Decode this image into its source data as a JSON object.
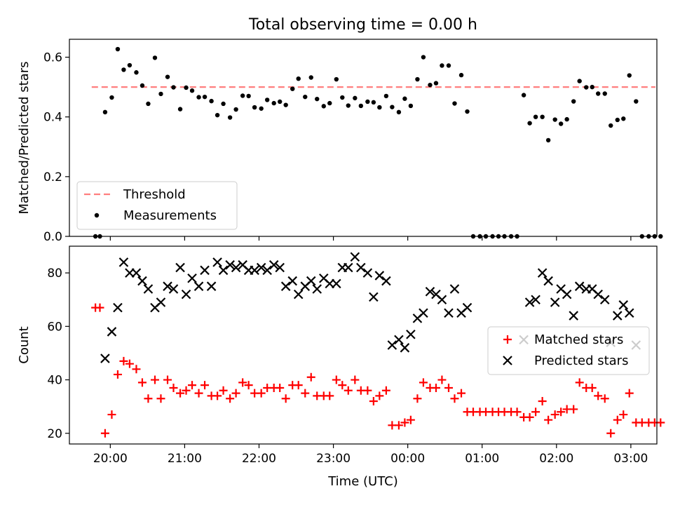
{
  "figure": {
    "title": "Total observing time = 0.00 h",
    "xlabel": "Time (UTC)"
  },
  "chart_data": [
    {
      "type": "scatter",
      "ylabel": "Matched/Predicted stars",
      "ylim": [
        0,
        0.66
      ],
      "yticks": [
        0.0,
        0.2,
        0.4,
        0.6
      ],
      "ytick_labels": [
        "0.0",
        "0.2",
        "0.4",
        "0.6"
      ],
      "xlim": [
        -0.55,
        7.35
      ],
      "xticks": [
        0,
        1,
        2,
        3,
        4,
        5,
        6,
        7
      ],
      "threshold": {
        "name": "Threshold",
        "value": 0.5,
        "x_range": [
          -0.25,
          7.33
        ],
        "color": "#ff7f7f"
      },
      "series": [
        {
          "name": "Measurements",
          "color": "#000000",
          "marker": "dot",
          "points": [
            [
              -0.2,
              0.0
            ],
            [
              -0.14,
              0.0
            ],
            [
              -0.07,
              0.416
            ],
            [
              0.02,
              0.465
            ],
            [
              0.1,
              0.627
            ],
            [
              0.18,
              0.558
            ],
            [
              0.26,
              0.573
            ],
            [
              0.35,
              0.549
            ],
            [
              0.43,
              0.505
            ],
            [
              0.51,
              0.444
            ],
            [
              0.6,
              0.598
            ],
            [
              0.68,
              0.477
            ],
            [
              0.77,
              0.534
            ],
            [
              0.85,
              0.499
            ],
            [
              0.94,
              0.426
            ],
            [
              1.02,
              0.498
            ],
            [
              1.1,
              0.488
            ],
            [
              1.19,
              0.466
            ],
            [
              1.27,
              0.467
            ],
            [
              1.36,
              0.453
            ],
            [
              1.44,
              0.406
            ],
            [
              1.52,
              0.444
            ],
            [
              1.61,
              0.398
            ],
            [
              1.69,
              0.425
            ],
            [
              1.78,
              0.471
            ],
            [
              1.86,
              0.47
            ],
            [
              1.94,
              0.432
            ],
            [
              2.03,
              0.428
            ],
            [
              2.11,
              0.457
            ],
            [
              2.2,
              0.446
            ],
            [
              2.28,
              0.451
            ],
            [
              2.36,
              0.44
            ],
            [
              2.45,
              0.494
            ],
            [
              2.53,
              0.528
            ],
            [
              2.62,
              0.467
            ],
            [
              2.7,
              0.532
            ],
            [
              2.78,
              0.46
            ],
            [
              2.87,
              0.436
            ],
            [
              2.95,
              0.446
            ],
            [
              3.04,
              0.526
            ],
            [
              3.12,
              0.465
            ],
            [
              3.2,
              0.438
            ],
            [
              3.29,
              0.463
            ],
            [
              3.37,
              0.437
            ],
            [
              3.46,
              0.451
            ],
            [
              3.54,
              0.449
            ],
            [
              3.62,
              0.432
            ],
            [
              3.71,
              0.47
            ],
            [
              3.79,
              0.433
            ],
            [
              3.88,
              0.416
            ],
            [
              3.96,
              0.461
            ],
            [
              4.04,
              0.437
            ],
            [
              4.13,
              0.526
            ],
            [
              4.21,
              0.6
            ],
            [
              4.3,
              0.507
            ],
            [
              4.38,
              0.513
            ],
            [
              4.46,
              0.572
            ],
            [
              4.55,
              0.572
            ],
            [
              4.63,
              0.445
            ],
            [
              4.72,
              0.54
            ],
            [
              4.8,
              0.418
            ],
            [
              4.88,
              0.0
            ],
            [
              4.97,
              0.0
            ],
            [
              5.05,
              0.0
            ],
            [
              5.14,
              0.0
            ],
            [
              5.22,
              0.0
            ],
            [
              5.3,
              0.0
            ],
            [
              5.39,
              0.0
            ],
            [
              5.47,
              0.0
            ],
            [
              5.56,
              0.473
            ],
            [
              5.64,
              0.379
            ],
            [
              5.72,
              0.4
            ],
            [
              5.81,
              0.4
            ],
            [
              5.89,
              0.322
            ],
            [
              5.98,
              0.391
            ],
            [
              6.06,
              0.377
            ],
            [
              6.14,
              0.392
            ],
            [
              6.23,
              0.452
            ],
            [
              6.31,
              0.52
            ],
            [
              6.4,
              0.499
            ],
            [
              6.48,
              0.5
            ],
            [
              6.56,
              0.478
            ],
            [
              6.65,
              0.478
            ],
            [
              6.73,
              0.371
            ],
            [
              6.82,
              0.39
            ],
            [
              6.9,
              0.394
            ],
            [
              6.98,
              0.539
            ],
            [
              7.07,
              0.452
            ],
            [
              7.15,
              0.0
            ],
            [
              7.24,
              0.0
            ],
            [
              7.32,
              0.0
            ],
            [
              7.4,
              0.0
            ]
          ]
        }
      ],
      "legend": {
        "placement": "lower-left",
        "entries": [
          "Threshold",
          "Measurements"
        ]
      }
    },
    {
      "type": "scatter",
      "ylabel": "Count",
      "ylim": [
        16,
        90
      ],
      "yticks": [
        20,
        40,
        60,
        80
      ],
      "ytick_labels": [
        "20",
        "40",
        "60",
        "80"
      ],
      "xlim": [
        -0.55,
        7.35
      ],
      "xticks": [
        0,
        1,
        2,
        3,
        4,
        5,
        6,
        7
      ],
      "xtick_labels": [
        "20:00",
        "21:00",
        "22:00",
        "23:00",
        "00:00",
        "01:00",
        "02:00",
        "03:00"
      ],
      "series": [
        {
          "name": "Matched stars",
          "color": "#ff0000",
          "marker": "plus",
          "points": [
            [
              -0.2,
              67
            ],
            [
              -0.14,
              67
            ],
            [
              -0.07,
              20
            ],
            [
              0.02,
              27
            ],
            [
              0.1,
              42
            ],
            [
              0.18,
              47
            ],
            [
              0.26,
              46
            ],
            [
              0.35,
              44
            ],
            [
              0.43,
              39
            ],
            [
              0.51,
              33
            ],
            [
              0.6,
              40
            ],
            [
              0.68,
              33
            ],
            [
              0.77,
              40
            ],
            [
              0.85,
              37
            ],
            [
              0.94,
              35
            ],
            [
              1.02,
              36
            ],
            [
              1.1,
              38
            ],
            [
              1.19,
              35
            ],
            [
              1.27,
              38
            ],
            [
              1.36,
              34
            ],
            [
              1.44,
              34
            ],
            [
              1.52,
              36
            ],
            [
              1.61,
              33
            ],
            [
              1.69,
              35
            ],
            [
              1.78,
              39
            ],
            [
              1.86,
              38
            ],
            [
              1.94,
              35
            ],
            [
              2.03,
              35
            ],
            [
              2.11,
              37
            ],
            [
              2.2,
              37
            ],
            [
              2.28,
              37
            ],
            [
              2.36,
              33
            ],
            [
              2.45,
              38
            ],
            [
              2.53,
              38
            ],
            [
              2.62,
              35
            ],
            [
              2.7,
              41
            ],
            [
              2.78,
              34
            ],
            [
              2.87,
              34
            ],
            [
              2.95,
              34
            ],
            [
              3.04,
              40
            ],
            [
              3.12,
              38
            ],
            [
              3.2,
              36
            ],
            [
              3.29,
              40
            ],
            [
              3.37,
              36
            ],
            [
              3.46,
              36
            ],
            [
              3.54,
              32
            ],
            [
              3.62,
              34
            ],
            [
              3.71,
              36
            ],
            [
              3.79,
              23
            ],
            [
              3.88,
              23
            ],
            [
              3.96,
              24
            ],
            [
              4.04,
              25
            ],
            [
              4.13,
              33
            ],
            [
              4.21,
              39
            ],
            [
              4.3,
              37
            ],
            [
              4.38,
              37
            ],
            [
              4.46,
              40
            ],
            [
              4.55,
              37
            ],
            [
              4.63,
              33
            ],
            [
              4.72,
              35
            ],
            [
              4.8,
              28
            ],
            [
              4.88,
              28
            ],
            [
              4.97,
              28
            ],
            [
              5.05,
              28
            ],
            [
              5.14,
              28
            ],
            [
              5.22,
              28
            ],
            [
              5.3,
              28
            ],
            [
              5.39,
              28
            ],
            [
              5.47,
              28
            ],
            [
              5.56,
              26
            ],
            [
              5.64,
              26
            ],
            [
              5.72,
              28
            ],
            [
              5.81,
              32
            ],
            [
              5.89,
              25
            ],
            [
              5.98,
              27
            ],
            [
              6.06,
              28
            ],
            [
              6.14,
              29
            ],
            [
              6.23,
              29
            ],
            [
              6.31,
              39
            ],
            [
              6.4,
              37
            ],
            [
              6.48,
              37
            ],
            [
              6.56,
              34
            ],
            [
              6.65,
              33
            ],
            [
              6.73,
              20
            ],
            [
              6.82,
              25
            ],
            [
              6.9,
              27
            ],
            [
              6.98,
              35
            ],
            [
              7.07,
              24
            ],
            [
              7.15,
              24
            ],
            [
              7.24,
              24
            ],
            [
              7.32,
              24
            ],
            [
              7.4,
              24
            ]
          ]
        },
        {
          "name": "Predicted stars",
          "color": "#000000",
          "marker": "x",
          "points": [
            [
              -0.07,
              48
            ],
            [
              0.02,
              58
            ],
            [
              0.1,
              67
            ],
            [
              0.18,
              84
            ],
            [
              0.26,
              80
            ],
            [
              0.35,
              80
            ],
            [
              0.43,
              77
            ],
            [
              0.51,
              74
            ],
            [
              0.6,
              67
            ],
            [
              0.68,
              69
            ],
            [
              0.77,
              75
            ],
            [
              0.85,
              74
            ],
            [
              0.94,
              82
            ],
            [
              1.02,
              72
            ],
            [
              1.1,
              78
            ],
            [
              1.19,
              75
            ],
            [
              1.27,
              81
            ],
            [
              1.36,
              75
            ],
            [
              1.44,
              84
            ],
            [
              1.52,
              81
            ],
            [
              1.61,
              83
            ],
            [
              1.69,
              82
            ],
            [
              1.78,
              83
            ],
            [
              1.86,
              81
            ],
            [
              1.94,
              81
            ],
            [
              2.03,
              82
            ],
            [
              2.11,
              81
            ],
            [
              2.2,
              83
            ],
            [
              2.28,
              82
            ],
            [
              2.36,
              75
            ],
            [
              2.45,
              77
            ],
            [
              2.53,
              72
            ],
            [
              2.62,
              75
            ],
            [
              2.7,
              77
            ],
            [
              2.78,
              74
            ],
            [
              2.87,
              78
            ],
            [
              2.95,
              76
            ],
            [
              3.04,
              76
            ],
            [
              3.12,
              82
            ],
            [
              3.2,
              82
            ],
            [
              3.29,
              86
            ],
            [
              3.37,
              82
            ],
            [
              3.46,
              80
            ],
            [
              3.54,
              71
            ],
            [
              3.62,
              79
            ],
            [
              3.71,
              77
            ],
            [
              3.79,
              53
            ],
            [
              3.88,
              55
            ],
            [
              3.96,
              52
            ],
            [
              4.04,
              57
            ],
            [
              4.13,
              63
            ],
            [
              4.21,
              65
            ],
            [
              4.3,
              73
            ],
            [
              4.38,
              72
            ],
            [
              4.46,
              70
            ],
            [
              4.55,
              65
            ],
            [
              4.63,
              74
            ],
            [
              4.72,
              65
            ],
            [
              4.8,
              67
            ],
            [
              5.56,
              55
            ],
            [
              5.64,
              69
            ],
            [
              5.72,
              70
            ],
            [
              5.81,
              80
            ],
            [
              5.89,
              77
            ],
            [
              5.98,
              69
            ],
            [
              6.06,
              74
            ],
            [
              6.14,
              72
            ],
            [
              6.23,
              64
            ],
            [
              6.31,
              75
            ],
            [
              6.4,
              74
            ],
            [
              6.48,
              74
            ],
            [
              6.56,
              72
            ],
            [
              6.65,
              70
            ],
            [
              6.73,
              54
            ],
            [
              6.82,
              64
            ],
            [
              6.9,
              68
            ],
            [
              6.98,
              65
            ],
            [
              7.07,
              53
            ]
          ]
        }
      ],
      "legend": {
        "placement": "center-right",
        "entries": [
          "Matched stars",
          "Predicted stars"
        ]
      }
    }
  ]
}
